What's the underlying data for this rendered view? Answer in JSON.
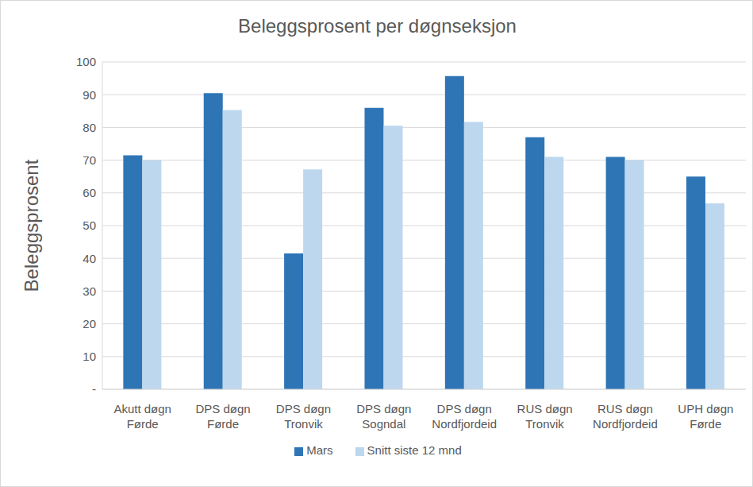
{
  "chart_data": {
    "type": "bar",
    "title": "Beleggsprosent per døgnseksjon",
    "y_label": "Beleggsprosent",
    "categories": [
      "Akutt døgn Førde",
      "DPS døgn Førde",
      "DPS døgn Tronvik",
      "DPS døgn Sogndal",
      "DPS døgn Nordfjordeid",
      "RUS døgn Tronvik",
      "RUS døgn Nordfjordeid",
      "UPH døgn Førde"
    ],
    "series": [
      {
        "name": "Mars",
        "color": "#2e75b6",
        "values": [
          71.5,
          90.5,
          41.5,
          86,
          95.7,
          77,
          71,
          65
        ]
      },
      {
        "name": "Snitt siste 12 mnd",
        "color": "#bdd7ee",
        "values": [
          70,
          85.3,
          67.2,
          80.5,
          81.7,
          71,
          70,
          56.8
        ]
      }
    ],
    "ylim": [
      0,
      100
    ],
    "yticks": [
      {
        "value": 0,
        "label": "-"
      },
      10,
      20,
      30,
      40,
      50,
      60,
      70,
      80,
      90,
      100
    ],
    "grid": true,
    "legend": "bottom"
  }
}
